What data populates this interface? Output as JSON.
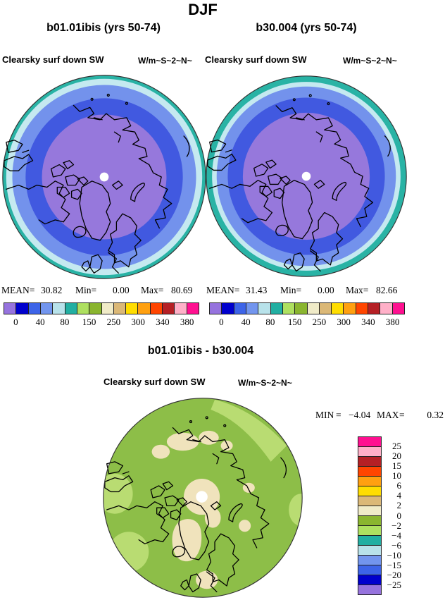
{
  "title": "DJF",
  "panels": [
    {
      "title": "b01.01ibis (yrs 50-74)",
      "var_label": "Clearsky surf down SW",
      "units": "W/m~S~2~N~",
      "stats": {
        "mean_label": "MEAN=",
        "mean": "30.82",
        "min_label": "Min=",
        "min": "0.00",
        "max_label": "Max=",
        "max": "80.69"
      }
    },
    {
      "title": "b30.004 (yrs 50-74)",
      "var_label": "Clearsky surf down SW",
      "units": "W/m~S~2~N~",
      "stats": {
        "mean_label": "MEAN=",
        "mean": "31.43",
        "min_label": "Min=",
        "min": "0.00",
        "max_label": "Max=",
        "max": "82.66"
      }
    }
  ],
  "shared_colorbar": {
    "colors": [
      "#9673de",
      "#0000cd",
      "#3d64e8",
      "#7295ee",
      "#b8e2ea",
      "#22afa2",
      "#aee060",
      "#8ab52f",
      "#f0ebc8",
      "#dbb877",
      "#ffdd00",
      "#ffa010",
      "#ff4500",
      "#b52025",
      "#ffb0c8",
      "#ff1090"
    ],
    "tick_labels": [
      "0",
      "40",
      "80",
      "150",
      "250",
      "300",
      "340",
      "380"
    ]
  },
  "diff_panel": {
    "title": "b01.01ibis - b30.004",
    "var_label": "Clearsky surf down SW",
    "units": "W/m~S~2~N~",
    "stats": {
      "min_label": "MIN",
      "eq1": "=",
      "min": "−4.04",
      "max_label": "MAX",
      "eq2": "=",
      "max": "0.32"
    },
    "colorbar": {
      "colors": [
        "#ff1090",
        "#ffb0c8",
        "#b52025",
        "#ff4500",
        "#ffa010",
        "#ffdd00",
        "#dbb877",
        "#f0ebc8",
        "#8ab52f",
        "#aee060",
        "#22afa2",
        "#b8e2ea",
        "#7295ee",
        "#3d64e8",
        "#0000cd",
        "#9673de"
      ],
      "tick_labels": [
        "25",
        "20",
        "15",
        "10",
        "6",
        "4",
        "2",
        "0",
        "−2",
        "−4",
        "−6",
        "−10",
        "−15",
        "−20",
        "−25"
      ]
    }
  },
  "map_colors": {
    "field_rings": {
      "purple": "#9678dc",
      "royal_blue": "#4159e0",
      "cornflower": "#7392ec",
      "pale_blue": "#c5e9f0",
      "teal": "#29b3a5",
      "pole_hole": "#ffffff"
    },
    "diff_map": {
      "base_green": "#8dbe48",
      "light_green": "#b9dc72",
      "beige": "#f0e3bc",
      "pole_hole": "#ffffff"
    },
    "coastline": "#000000"
  },
  "chart_data": [
    {
      "type": "heatmap",
      "subtype": "polar-stereographic-map",
      "season": "DJF",
      "title": "b01.01ibis (yrs 50-74)",
      "field": "Clearsky surf down SW",
      "units": "W/m~S~2~N~",
      "mean": 30.82,
      "min": 0.0,
      "max": 80.69,
      "colorbar_tick_values": [
        0,
        40,
        80,
        150,
        250,
        300,
        340,
        380
      ],
      "legend_position": "bottom",
      "note": "concentric field: purple low values at pole increasing outward through blues to teal at map edge"
    },
    {
      "type": "heatmap",
      "subtype": "polar-stereographic-map",
      "season": "DJF",
      "title": "b30.004 (yrs 50-74)",
      "field": "Clearsky surf down SW",
      "units": "W/m~S~2~N~",
      "mean": 31.43,
      "min": 0.0,
      "max": 82.66,
      "colorbar_tick_values": [
        0,
        40,
        80,
        150,
        250,
        300,
        340,
        380
      ],
      "legend_position": "bottom",
      "note": "concentric field: purple low values at pole increasing outward through blues to teal at map edge"
    },
    {
      "type": "heatmap",
      "subtype": "polar-stereographic-map",
      "season": "DJF",
      "title": "b01.01ibis - b30.004",
      "field": "Clearsky surf down SW",
      "units": "W/m~S~2~N~",
      "min": -4.04,
      "max": 0.32,
      "colorbar_tick_values": [
        25,
        20,
        15,
        10,
        6,
        4,
        2,
        0,
        -2,
        -4,
        -6,
        -10,
        -15,
        -20,
        -25
      ],
      "legend_position": "right",
      "note": "mostly green (0 to -2) with beige (0 to 2) patches near pole, Greenland and Scandinavia; light green (-2 to -4) near map edges"
    }
  ]
}
